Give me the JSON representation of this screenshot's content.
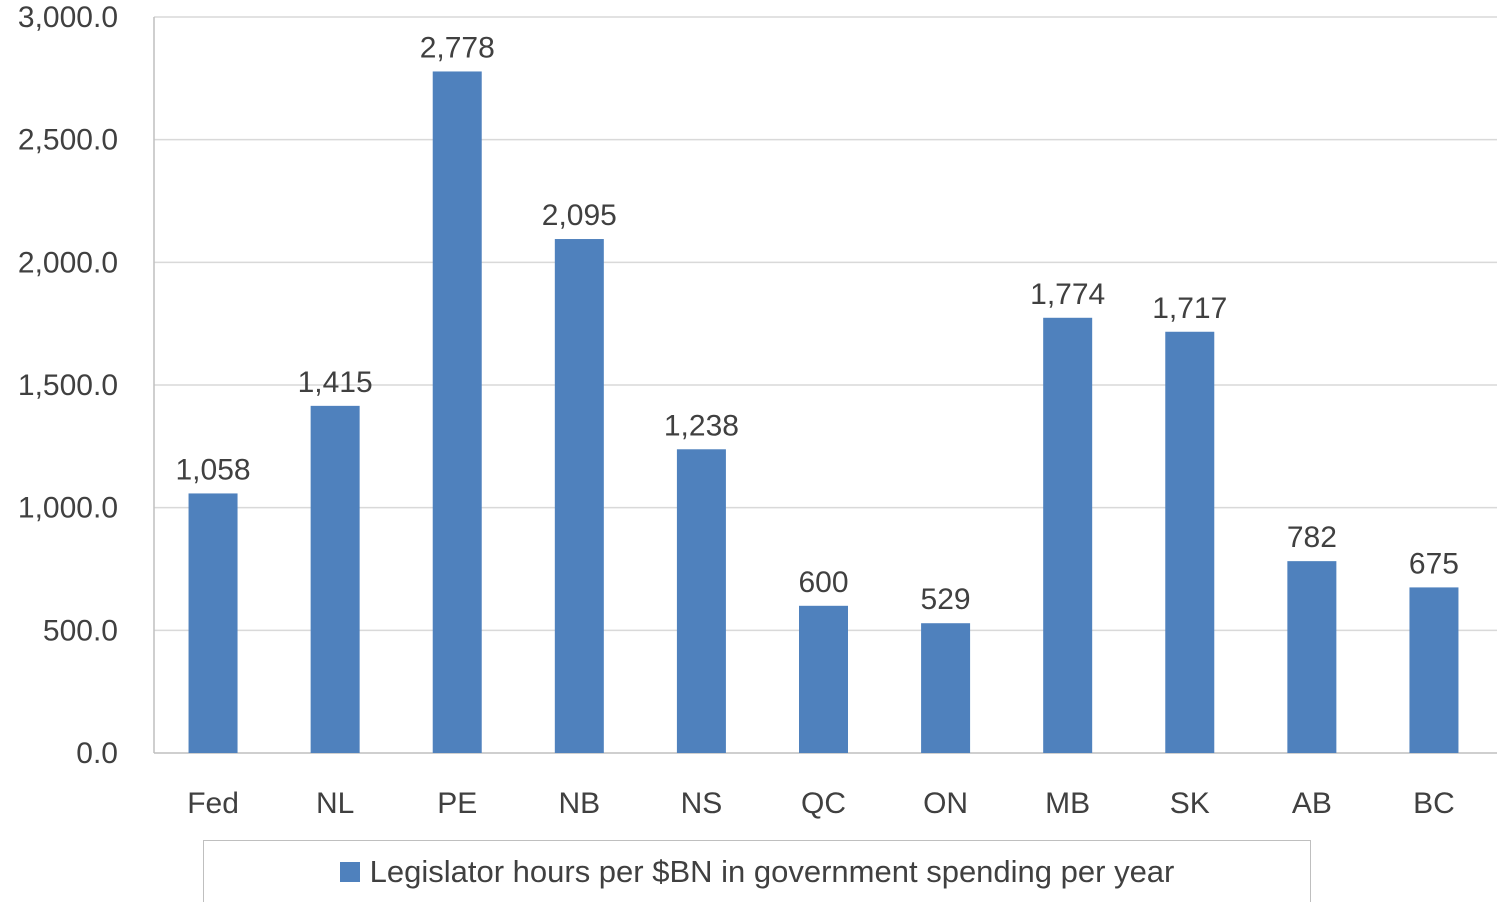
{
  "chart_data": {
    "type": "bar",
    "categories": [
      "Fed",
      "NL",
      "PE",
      "NB",
      "NS",
      "QC",
      "ON",
      "MB",
      "SK",
      "AB",
      "BC"
    ],
    "series": [
      {
        "name": "Legislator hours per $BN in government spending per year",
        "values": [
          1058,
          1415,
          2778,
          2095,
          1238,
          600,
          529,
          1774,
          1717,
          782,
          675
        ],
        "labels": [
          "1,058",
          "1,415",
          "2,778",
          "2,095",
          "1,238",
          "600",
          "529",
          "1,774",
          "1,717",
          "782",
          "675"
        ]
      }
    ],
    "ylim": [
      0,
      3000
    ],
    "yticks": [
      0,
      500,
      1000,
      1500,
      2000,
      2500,
      3000
    ],
    "ytick_labels": [
      "0.0",
      "500.0",
      "1,000.0",
      "1,500.0",
      "2,000.0",
      "2,500.0",
      "3,000.0"
    ],
    "grid": true,
    "legend_position": "bottom",
    "colors": {
      "bar": "#4f81bd",
      "grid": "#d9d9d9",
      "text": "#404040"
    }
  }
}
